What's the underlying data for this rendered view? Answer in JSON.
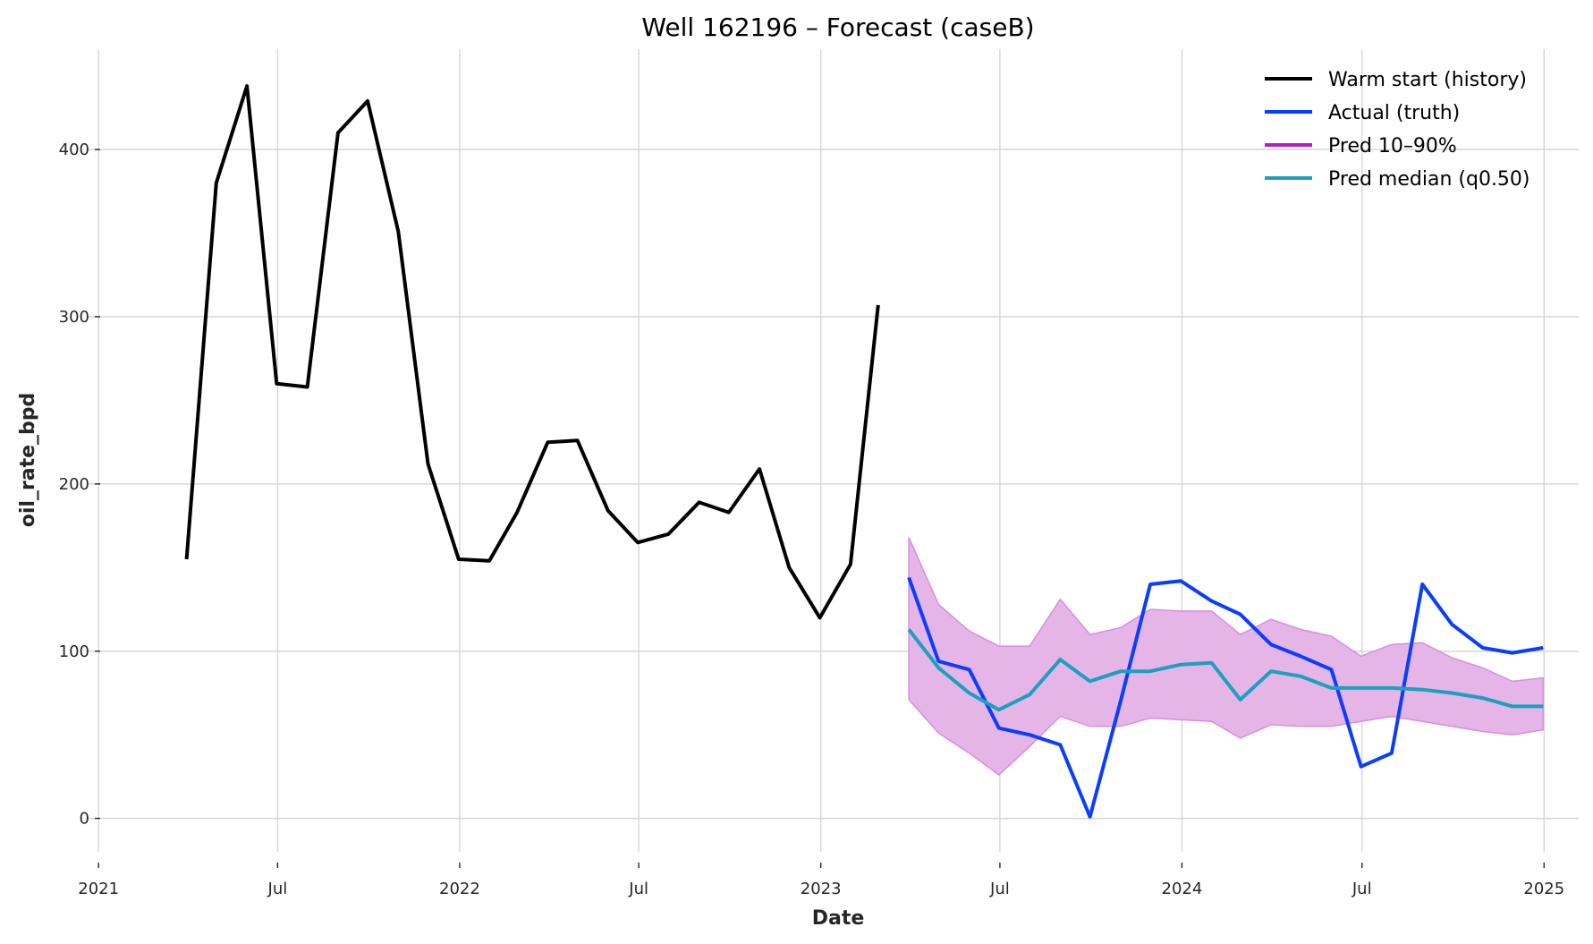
{
  "chart_data": {
    "type": "line",
    "title": "Well 162196 – Forecast (caseB)",
    "xlabel": "Date",
    "ylabel": "oil_rate_bpd",
    "xlim": [
      "2020-12-21",
      "2025-02-05"
    ],
    "ylim": [
      -20,
      460
    ],
    "grid": true,
    "legend_position": "top-right",
    "x_ticks": [
      {
        "date": "2021-01-01",
        "label": "2021"
      },
      {
        "date": "2021-07-01",
        "label": "Jul"
      },
      {
        "date": "2022-01-01",
        "label": "2022"
      },
      {
        "date": "2022-07-01",
        "label": "Jul"
      },
      {
        "date": "2023-01-01",
        "label": "2023"
      },
      {
        "date": "2023-07-01",
        "label": "Jul"
      },
      {
        "date": "2024-01-01",
        "label": "2024"
      },
      {
        "date": "2024-07-01",
        "label": "Jul"
      },
      {
        "date": "2025-01-01",
        "label": "2025"
      }
    ],
    "y_ticks": [
      0,
      100,
      200,
      300,
      400
    ],
    "series": [
      {
        "name": "Warm start (history)",
        "color": "#000000",
        "x": [
          "2021-03-31",
          "2021-04-30",
          "2021-05-31",
          "2021-06-30",
          "2021-07-31",
          "2021-08-31",
          "2021-09-30",
          "2021-10-31",
          "2021-11-30",
          "2021-12-31",
          "2022-01-31",
          "2022-02-28",
          "2022-03-31",
          "2022-04-30",
          "2022-05-31",
          "2022-06-30",
          "2022-07-31",
          "2022-08-31",
          "2022-09-30",
          "2022-10-31",
          "2022-11-30",
          "2022-12-31",
          "2023-01-31",
          "2023-02-28"
        ],
        "y": [
          155,
          380,
          438,
          260,
          258,
          410,
          429,
          351,
          212,
          155,
          154,
          183,
          225,
          226,
          184,
          165,
          170,
          189,
          183,
          209,
          150,
          120,
          152,
          307
        ]
      },
      {
        "name": "Actual (truth)",
        "color": "#0a3dff",
        "x": [
          "2023-03-31",
          "2023-04-30",
          "2023-05-31",
          "2023-06-30",
          "2023-07-31",
          "2023-08-31",
          "2023-09-30",
          "2023-10-31",
          "2023-11-30",
          "2023-12-31",
          "2024-01-31",
          "2024-02-29",
          "2024-03-31",
          "2024-04-30",
          "2024-05-31",
          "2024-06-30",
          "2024-07-31",
          "2024-08-31",
          "2024-09-30",
          "2024-10-31",
          "2024-11-30",
          "2024-12-31"
        ],
        "y": [
          144,
          94,
          89,
          54,
          50,
          44,
          1,
          70,
          140,
          142,
          130,
          122,
          104,
          97,
          89,
          31,
          39,
          140,
          116,
          102,
          99,
          102
        ]
      },
      {
        "name": "Pred 10–90%",
        "color": "#b21fbf",
        "fill": "#e5b5e8",
        "x": [
          "2023-03-31",
          "2023-04-30",
          "2023-05-31",
          "2023-06-30",
          "2023-07-31",
          "2023-08-31",
          "2023-09-30",
          "2023-10-31",
          "2023-11-30",
          "2023-12-31",
          "2024-01-31",
          "2024-02-29",
          "2024-03-31",
          "2024-04-30",
          "2024-05-31",
          "2024-06-30",
          "2024-07-31",
          "2024-08-31",
          "2024-09-30",
          "2024-10-31",
          "2024-11-30",
          "2024-12-31"
        ],
        "y_low": [
          71,
          51,
          39,
          26,
          43,
          61,
          55,
          55,
          60,
          59,
          58,
          48,
          56,
          55,
          55,
          58,
          61,
          58,
          55,
          52,
          50,
          53
        ],
        "y_high": [
          168,
          128,
          112,
          103,
          103,
          131,
          110,
          114,
          125,
          124,
          124,
          110,
          119,
          113,
          109,
          97,
          104,
          105,
          96,
          90,
          82,
          84
        ]
      },
      {
        "name": "Pred median (q0.50)",
        "color": "#1ba0bd",
        "x": [
          "2023-03-31",
          "2023-04-30",
          "2023-05-31",
          "2023-06-30",
          "2023-07-31",
          "2023-08-31",
          "2023-09-30",
          "2023-10-31",
          "2023-11-30",
          "2023-12-31",
          "2024-01-31",
          "2024-02-29",
          "2024-03-31",
          "2024-04-30",
          "2024-05-31",
          "2024-06-30",
          "2024-07-31",
          "2024-08-31",
          "2024-09-30",
          "2024-10-31",
          "2024-11-30",
          "2024-12-31"
        ],
        "y": [
          113,
          90,
          75,
          65,
          74,
          95,
          82,
          88,
          88,
          92,
          93,
          71,
          88,
          85,
          78,
          78,
          78,
          77,
          75,
          72,
          67,
          67
        ]
      }
    ]
  }
}
